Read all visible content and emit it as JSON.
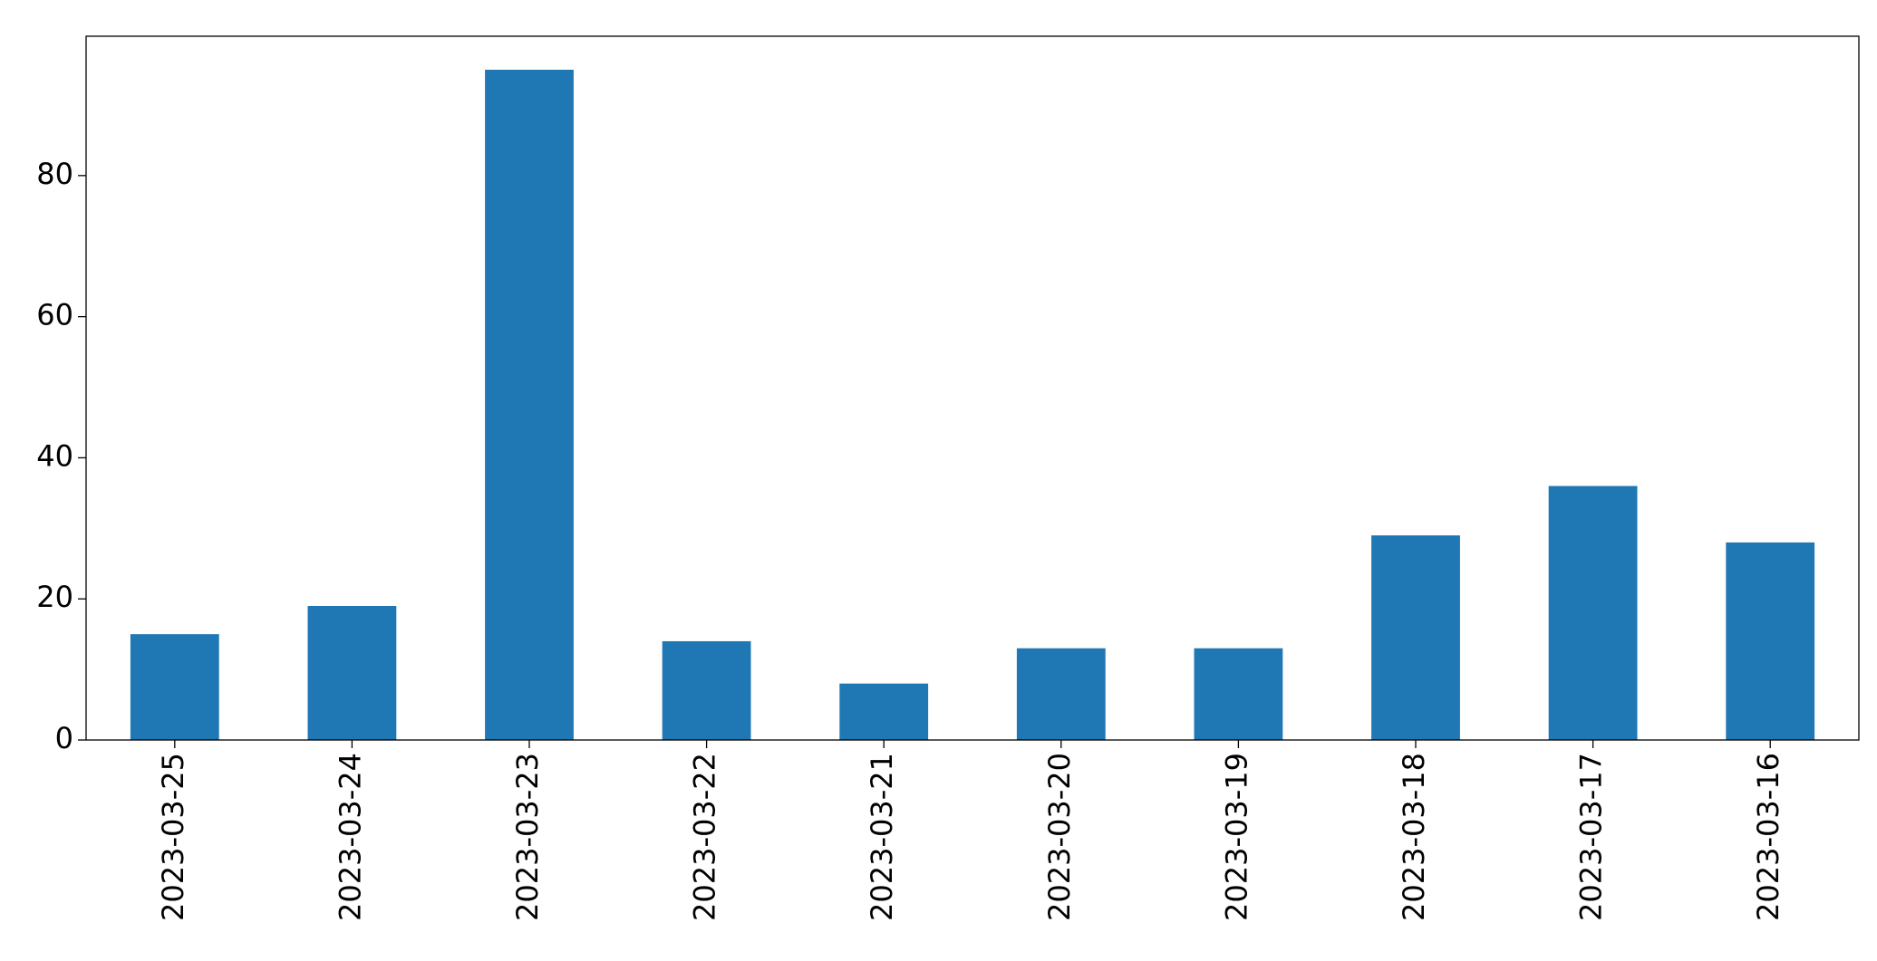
{
  "chart_data": {
    "type": "bar",
    "categories": [
      "2023-03-25",
      "2023-03-24",
      "2023-03-23",
      "2023-03-22",
      "2023-03-21",
      "2023-03-20",
      "2023-03-19",
      "2023-03-18",
      "2023-03-17",
      "2023-03-16"
    ],
    "values": [
      15,
      19,
      95,
      14,
      8,
      13,
      13,
      29,
      36,
      28
    ],
    "color": "#1f77b4",
    "ylim": [
      0,
      99.75
    ],
    "yticks": [
      0,
      20,
      40,
      60,
      80
    ],
    "grid": false
  }
}
